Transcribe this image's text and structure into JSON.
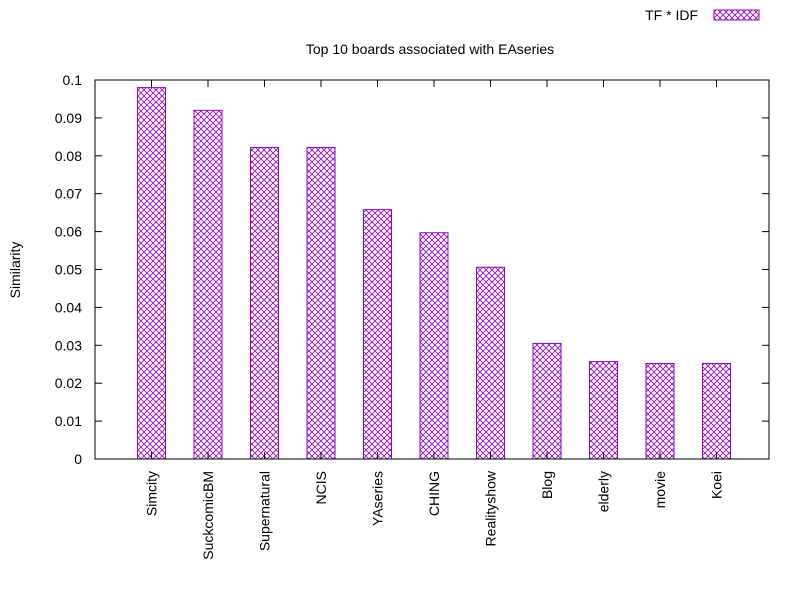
{
  "chart_data": {
    "type": "bar",
    "title": "Top 10 boards associated with EAseries",
    "xlabel": "",
    "ylabel": "Similarity",
    "ylim": [
      0,
      0.1
    ],
    "yticks": [
      "0",
      "0.01",
      "0.02",
      "0.03",
      "0.04",
      "0.05",
      "0.06",
      "0.07",
      "0.08",
      "0.09",
      "0.1"
    ],
    "categories": [
      "Simcity",
      "SuckcomicBM",
      "Supernatural",
      "NCIS",
      "YAseries",
      "CHING",
      "Realityshow",
      "Blog",
      "elderly",
      "movie",
      "Koei"
    ],
    "series": [
      {
        "name": "TF * IDF",
        "color": "#9400d3",
        "fill_pattern": "crosshatch",
        "values": [
          0.098,
          0.092,
          0.0822,
          0.0822,
          0.0658,
          0.0597,
          0.0506,
          0.0305,
          0.0257,
          0.0252,
          0.0252
        ]
      }
    ],
    "grid": false,
    "legend_position": "top-right"
  }
}
